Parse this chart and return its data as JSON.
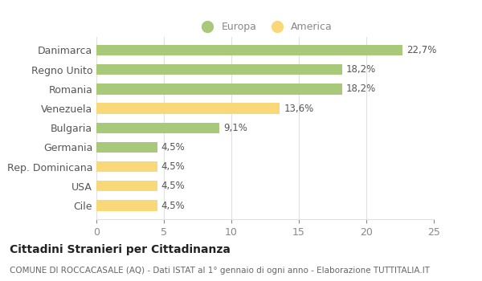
{
  "categories": [
    "Cile",
    "USA",
    "Rep. Dominicana",
    "Germania",
    "Bulgaria",
    "Venezuela",
    "Romania",
    "Regno Unito",
    "Danimarca"
  ],
  "values": [
    4.5,
    4.5,
    4.5,
    4.5,
    9.1,
    13.6,
    18.2,
    18.2,
    22.7
  ],
  "labels": [
    "4,5%",
    "4,5%",
    "4,5%",
    "4,5%",
    "9,1%",
    "13,6%",
    "18,2%",
    "18,2%",
    "22,7%"
  ],
  "colors": [
    "#f9d87a",
    "#f9d87a",
    "#f9d87a",
    "#a8c87a",
    "#a8c87a",
    "#f9d87a",
    "#a8c87a",
    "#a8c87a",
    "#a8c87a"
  ],
  "europa_color": "#a8c87a",
  "america_color": "#f9d87a",
  "background_color": "#ffffff",
  "grid_color": "#e0e0e0",
  "title": "Cittadini Stranieri per Cittadinanza",
  "subtitle": "COMUNE DI ROCCACASALE (AQ) - Dati ISTAT al 1° gennaio di ogni anno - Elaborazione TUTTITALIA.IT",
  "xlim": [
    0,
    25
  ],
  "xticks": [
    0,
    5,
    10,
    15,
    20,
    25
  ],
  "bar_height": 0.55,
  "legend_europa": "Europa",
  "legend_america": "America",
  "label_fontsize": 8.5,
  "ytick_fontsize": 9,
  "xtick_fontsize": 9,
  "legend_fontsize": 9,
  "title_fontsize": 10,
  "subtitle_fontsize": 7.5
}
